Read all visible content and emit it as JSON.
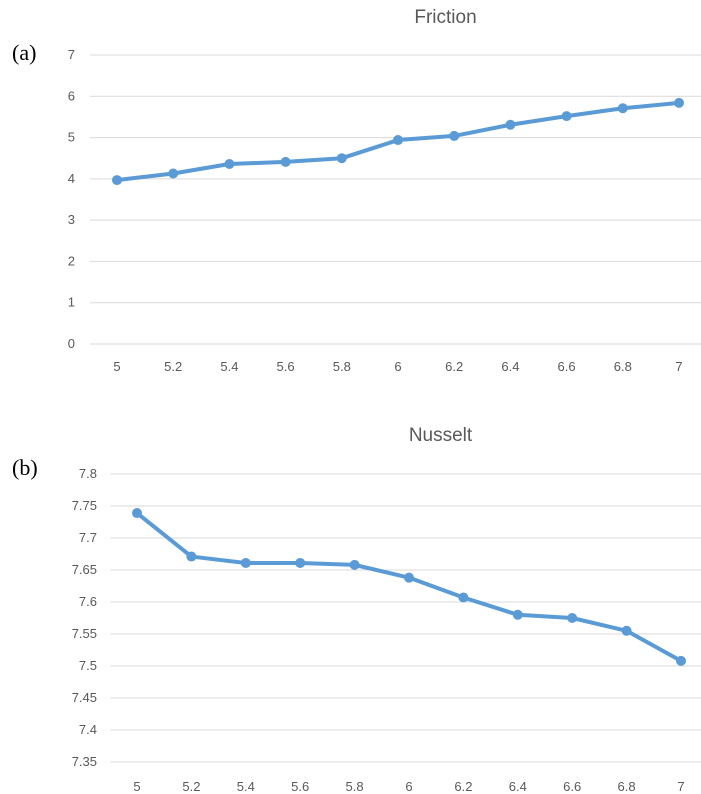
{
  "chart_data": [
    {
      "type": "line",
      "panel_label": "(a)",
      "title": "Friction",
      "x": [
        5,
        5.2,
        5.4,
        5.6,
        5.8,
        6,
        6.2,
        6.4,
        6.6,
        6.8,
        7
      ],
      "x_tick_labels": [
        "5",
        "5.2",
        "5.4",
        "5.6",
        "5.8",
        "6",
        "6.2",
        "6.4",
        "6.6",
        "6.8",
        "7"
      ],
      "y_ticks": [
        0,
        1,
        2,
        3,
        4,
        5,
        6,
        7
      ],
      "y_tick_labels": [
        "0",
        "1",
        "2",
        "3",
        "4",
        "5",
        "6",
        "7"
      ],
      "ylim": [
        0,
        7
      ],
      "series": [
        {
          "values": [
            3.97,
            4.13,
            4.36,
            4.41,
            4.5,
            4.94,
            5.04,
            5.31,
            5.52,
            5.71,
            5.84
          ]
        }
      ],
      "grid": true,
      "color": "#5b9bd5"
    },
    {
      "type": "line",
      "panel_label": "(b)",
      "title": "Nusselt",
      "x": [
        5,
        5.2,
        5.4,
        5.6,
        5.8,
        6,
        6.2,
        6.4,
        6.6,
        6.8,
        7
      ],
      "x_tick_labels": [
        "5",
        "5.2",
        "5.4",
        "5.6",
        "5.8",
        "6",
        "6.2",
        "6.4",
        "6.6",
        "6.8",
        "7"
      ],
      "y_ticks": [
        7.35,
        7.4,
        7.45,
        7.5,
        7.55,
        7.6,
        7.65,
        7.7,
        7.75,
        7.8
      ],
      "y_tick_labels": [
        "7.35",
        "7.4",
        "7.45",
        "7.5",
        "7.55",
        "7.6",
        "7.65",
        "7.7",
        "7.75",
        "7.8"
      ],
      "ylim": [
        7.35,
        7.8
      ],
      "series": [
        {
          "values": [
            7.739,
            7.671,
            7.661,
            7.661,
            7.658,
            7.638,
            7.607,
            7.58,
            7.575,
            7.555,
            7.508
          ]
        }
      ],
      "grid": true,
      "color": "#5b9bd5"
    }
  ]
}
